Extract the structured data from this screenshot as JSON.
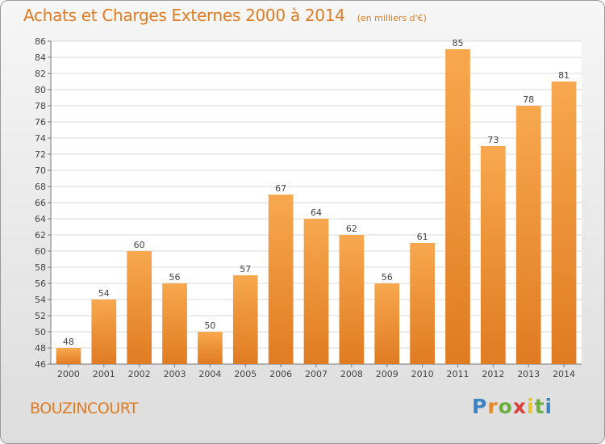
{
  "title": "Achats et Charges Externes 2000 à 2014",
  "unit": "(en milliers d'€)",
  "commune": "BOUZINCOURT",
  "logo_text": "Proxiti",
  "colors": {
    "bar_light": "#f7a84e",
    "bar_dark": "#e07b22",
    "text_accent": "#e07b22"
  },
  "chart_data": {
    "type": "bar",
    "title": "Achats et Charges Externes 2000 à 2014",
    "subtitle": "(en milliers d'€)",
    "categories": [
      "2000",
      "2001",
      "2002",
      "2003",
      "2004",
      "2005",
      "2006",
      "2007",
      "2008",
      "2009",
      "2010",
      "2011",
      "2012",
      "2013",
      "2014"
    ],
    "values": [
      48,
      54,
      60,
      56,
      50,
      57,
      67,
      64,
      62,
      56,
      61,
      85,
      73,
      78,
      81
    ],
    "ylim": [
      46,
      86
    ],
    "yticks": [
      46,
      48,
      50,
      52,
      54,
      56,
      58,
      60,
      62,
      64,
      66,
      68,
      70,
      72,
      74,
      76,
      78,
      80,
      82,
      84,
      86
    ],
    "grid": true,
    "xlabel": "",
    "ylabel": ""
  }
}
